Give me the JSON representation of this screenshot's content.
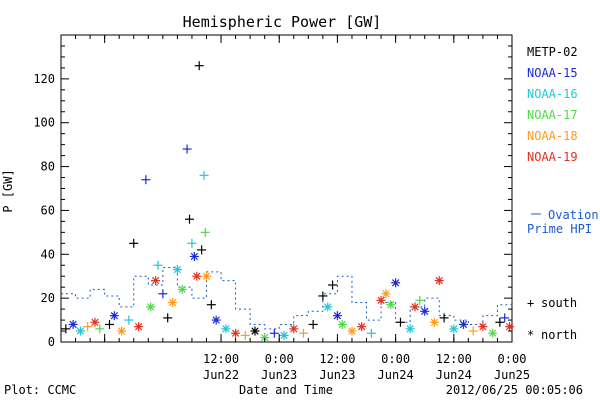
{
  "chart_data": {
    "type": "scatter",
    "title": "Hemispheric Power [GW]",
    "xlabel": "Date and Time",
    "ylabel": "P [GW]",
    "ylim": [
      0,
      140
    ],
    "xlim": [
      "2012-06-21 03:00",
      "2012-06-25 00:00"
    ],
    "y_ticks": [
      "0",
      "20",
      "40",
      "60",
      "80",
      "100",
      "120"
    ],
    "x_ticks": [
      {
        "t": "2012-06-21 12:00",
        "top": "",
        "bottom": ""
      },
      {
        "t": "2012-06-22 12:00",
        "top": "12:00",
        "bottom": "Jun22"
      },
      {
        "t": "2012-06-23 00:00",
        "top": "0:00",
        "bottom": "Jun23"
      },
      {
        "t": "2012-06-23 12:00",
        "top": "12:00",
        "bottom": "Jun23"
      },
      {
        "t": "2012-06-24 00:00",
        "top": "0:00",
        "bottom": "Jun24"
      },
      {
        "t": "2012-06-24 12:00",
        "top": "12:00",
        "bottom": "Jun24"
      },
      {
        "t": "2012-06-25 00:00",
        "top": "0:00",
        "bottom": "Jun25"
      }
    ],
    "grid": false,
    "legend_position": "right",
    "satellites": [
      {
        "name": "METP-02",
        "color": "#000000"
      },
      {
        "name": "NOAA-15",
        "color": "#1a2ad6"
      },
      {
        "name": "NOAA-16",
        "color": "#1fc8d8"
      },
      {
        "name": "NOAA-17",
        "color": "#53d84a"
      },
      {
        "name": "NOAA-18",
        "color": "#ff9a1c"
      },
      {
        "name": "NOAA-19",
        "color": "#e0321e"
      }
    ],
    "ovation": {
      "label_line1": "Ovation",
      "label_line2": "Prime HPI",
      "color": "#1a5ccc",
      "points": [
        [
          "2012-06-21 03:00",
          22
        ],
        [
          "2012-06-21 06:00",
          20
        ],
        [
          "2012-06-21 09:00",
          24
        ],
        [
          "2012-06-21 12:00",
          21
        ],
        [
          "2012-06-21 15:00",
          16
        ],
        [
          "2012-06-21 18:00",
          30
        ],
        [
          "2012-06-21 21:00",
          26
        ],
        [
          "2012-06-22 00:00",
          34
        ],
        [
          "2012-06-22 03:00",
          25
        ],
        [
          "2012-06-22 06:00",
          20
        ],
        [
          "2012-06-22 09:00",
          32
        ],
        [
          "2012-06-22 12:00",
          28
        ],
        [
          "2012-06-22 15:00",
          15
        ],
        [
          "2012-06-22 18:00",
          8
        ],
        [
          "2012-06-22 21:00",
          6
        ],
        [
          "2012-06-23 00:00",
          8
        ],
        [
          "2012-06-23 03:00",
          12
        ],
        [
          "2012-06-23 06:00",
          14
        ],
        [
          "2012-06-23 09:00",
          22
        ],
        [
          "2012-06-23 12:00",
          30
        ],
        [
          "2012-06-23 15:00",
          18
        ],
        [
          "2012-06-23 18:00",
          10
        ],
        [
          "2012-06-23 21:00",
          18
        ],
        [
          "2012-06-24 00:00",
          9
        ],
        [
          "2012-06-24 03:00",
          16
        ],
        [
          "2012-06-24 06:00",
          20
        ],
        [
          "2012-06-24 09:00",
          12
        ],
        [
          "2012-06-24 12:00",
          10
        ],
        [
          "2012-06-24 15:00",
          8
        ],
        [
          "2012-06-24 18:00",
          12
        ],
        [
          "2012-06-24 21:00",
          17
        ],
        [
          "2012-06-25 00:00",
          19
        ]
      ]
    },
    "symbols": [
      {
        "marker": "+",
        "label": "south"
      },
      {
        "marker": "*",
        "label": "north"
      }
    ],
    "points": [
      {
        "t": "2012-06-21 04:00",
        "v": 6,
        "sat": 0,
        "m": "+"
      },
      {
        "t": "2012-06-21 05:30",
        "v": 8,
        "sat": 1,
        "m": "*"
      },
      {
        "t": "2012-06-21 07:00",
        "v": 5,
        "sat": 2,
        "m": "*"
      },
      {
        "t": "2012-06-21 08:30",
        "v": 7,
        "sat": 4,
        "m": "+"
      },
      {
        "t": "2012-06-21 10:00",
        "v": 9,
        "sat": 5,
        "m": "*"
      },
      {
        "t": "2012-06-21 11:00",
        "v": 6,
        "sat": 3,
        "m": "+"
      },
      {
        "t": "2012-06-21 13:00",
        "v": 8,
        "sat": 0,
        "m": "+"
      },
      {
        "t": "2012-06-21 14:00",
        "v": 12,
        "sat": 1,
        "m": "*"
      },
      {
        "t": "2012-06-21 15:30",
        "v": 5,
        "sat": 4,
        "m": "*"
      },
      {
        "t": "2012-06-21 17:00",
        "v": 10,
        "sat": 2,
        "m": "+"
      },
      {
        "t": "2012-06-21 18:00",
        "v": 45,
        "sat": 0,
        "m": "+"
      },
      {
        "t": "2012-06-21 19:00",
        "v": 7,
        "sat": 5,
        "m": "*"
      },
      {
        "t": "2012-06-21 20:30",
        "v": 74,
        "sat": 1,
        "m": "+"
      },
      {
        "t": "2012-06-21 21:30",
        "v": 16,
        "sat": 3,
        "m": "*"
      },
      {
        "t": "2012-06-21 22:30",
        "v": 28,
        "sat": 5,
        "m": "*"
      },
      {
        "t": "2012-06-21 23:00",
        "v": 35,
        "sat": 2,
        "m": "+"
      },
      {
        "t": "2012-06-22 00:00",
        "v": 22,
        "sat": 1,
        "m": "+"
      },
      {
        "t": "2012-06-22 01:00",
        "v": 11,
        "sat": 0,
        "m": "+"
      },
      {
        "t": "2012-06-22 02:00",
        "v": 18,
        "sat": 4,
        "m": "*"
      },
      {
        "t": "2012-06-22 03:00",
        "v": 33,
        "sat": 2,
        "m": "*"
      },
      {
        "t": "2012-06-22 04:00",
        "v": 24,
        "sat": 3,
        "m": "*"
      },
      {
        "t": "2012-06-22 05:00",
        "v": 88,
        "sat": 1,
        "m": "+"
      },
      {
        "t": "2012-06-22 05:30",
        "v": 56,
        "sat": 0,
        "m": "+"
      },
      {
        "t": "2012-06-22 06:00",
        "v": 45,
        "sat": 2,
        "m": "+"
      },
      {
        "t": "2012-06-22 06:30",
        "v": 39,
        "sat": 1,
        "m": "*"
      },
      {
        "t": "2012-06-22 07:00",
        "v": 30,
        "sat": 5,
        "m": "*"
      },
      {
        "t": "2012-06-22 07:30",
        "v": 126,
        "sat": 0,
        "m": "+"
      },
      {
        "t": "2012-06-22 08:00",
        "v": 42,
        "sat": 0,
        "m": "+"
      },
      {
        "t": "2012-06-22 08:30",
        "v": 76,
        "sat": 2,
        "m": "+"
      },
      {
        "t": "2012-06-22 08:45",
        "v": 50,
        "sat": 3,
        "m": "+"
      },
      {
        "t": "2012-06-22 09:00",
        "v": 30,
        "sat": 4,
        "m": "*"
      },
      {
        "t": "2012-06-22 10:00",
        "v": 17,
        "sat": 0,
        "m": "+"
      },
      {
        "t": "2012-06-22 11:00",
        "v": 10,
        "sat": 1,
        "m": "*"
      },
      {
        "t": "2012-06-22 13:00",
        "v": 6,
        "sat": 2,
        "m": "*"
      },
      {
        "t": "2012-06-22 15:00",
        "v": 4,
        "sat": 5,
        "m": "*"
      },
      {
        "t": "2012-06-22 17:00",
        "v": 3,
        "sat": 4,
        "m": "+"
      },
      {
        "t": "2012-06-22 19:00",
        "v": 5,
        "sat": 0,
        "m": "*"
      },
      {
        "t": "2012-06-22 21:00",
        "v": 2,
        "sat": 3,
        "m": "*"
      },
      {
        "t": "2012-06-22 23:00",
        "v": 4,
        "sat": 1,
        "m": "+"
      },
      {
        "t": "2012-06-23 01:00",
        "v": 3,
        "sat": 2,
        "m": "*"
      },
      {
        "t": "2012-06-23 03:00",
        "v": 6,
        "sat": 5,
        "m": "*"
      },
      {
        "t": "2012-06-23 05:00",
        "v": 4,
        "sat": 4,
        "m": "+"
      },
      {
        "t": "2012-06-23 07:00",
        "v": 8,
        "sat": 0,
        "m": "+"
      },
      {
        "t": "2012-06-23 09:00",
        "v": 21,
        "sat": 0,
        "m": "+"
      },
      {
        "t": "2012-06-23 10:00",
        "v": 16,
        "sat": 2,
        "m": "*"
      },
      {
        "t": "2012-06-23 11:00",
        "v": 26,
        "sat": 0,
        "m": "+"
      },
      {
        "t": "2012-06-23 12:00",
        "v": 12,
        "sat": 1,
        "m": "*"
      },
      {
        "t": "2012-06-23 13:00",
        "v": 8,
        "sat": 3,
        "m": "*"
      },
      {
        "t": "2012-06-23 15:00",
        "v": 5,
        "sat": 4,
        "m": "*"
      },
      {
        "t": "2012-06-23 17:00",
        "v": 7,
        "sat": 5,
        "m": "*"
      },
      {
        "t": "2012-06-23 19:00",
        "v": 4,
        "sat": 2,
        "m": "+"
      },
      {
        "t": "2012-06-23 21:00",
        "v": 19,
        "sat": 5,
        "m": "*"
      },
      {
        "t": "2012-06-23 22:00",
        "v": 22,
        "sat": 4,
        "m": "*"
      },
      {
        "t": "2012-06-23 23:00",
        "v": 17,
        "sat": 3,
        "m": "*"
      },
      {
        "t": "2012-06-24 00:00",
        "v": 27,
        "sat": 1,
        "m": "*"
      },
      {
        "t": "2012-06-24 01:00",
        "v": 9,
        "sat": 0,
        "m": "+"
      },
      {
        "t": "2012-06-24 03:00",
        "v": 6,
        "sat": 2,
        "m": "*"
      },
      {
        "t": "2012-06-24 04:00",
        "v": 16,
        "sat": 5,
        "m": "*"
      },
      {
        "t": "2012-06-24 05:00",
        "v": 19,
        "sat": 3,
        "m": "+"
      },
      {
        "t": "2012-06-24 06:00",
        "v": 14,
        "sat": 1,
        "m": "*"
      },
      {
        "t": "2012-06-24 08:00",
        "v": 9,
        "sat": 4,
        "m": "*"
      },
      {
        "t": "2012-06-24 09:00",
        "v": 28,
        "sat": 5,
        "m": "*"
      },
      {
        "t": "2012-06-24 10:00",
        "v": 11,
        "sat": 0,
        "m": "+"
      },
      {
        "t": "2012-06-24 12:00",
        "v": 6,
        "sat": 2,
        "m": "*"
      },
      {
        "t": "2012-06-24 14:00",
        "v": 8,
        "sat": 1,
        "m": "*"
      },
      {
        "t": "2012-06-24 16:00",
        "v": 5,
        "sat": 4,
        "m": "+"
      },
      {
        "t": "2012-06-24 18:00",
        "v": 7,
        "sat": 5,
        "m": "*"
      },
      {
        "t": "2012-06-24 20:00",
        "v": 4,
        "sat": 3,
        "m": "*"
      },
      {
        "t": "2012-06-24 21:30",
        "v": 9,
        "sat": 0,
        "m": "+"
      },
      {
        "t": "2012-06-24 22:30",
        "v": 11,
        "sat": 1,
        "m": "+"
      },
      {
        "t": "2012-06-24 23:30",
        "v": 7,
        "sat": 5,
        "m": "*"
      }
    ]
  },
  "footer": {
    "plot_credit": "Plot: CCMC",
    "timestamp": "2012/06/25 00:05:06"
  }
}
